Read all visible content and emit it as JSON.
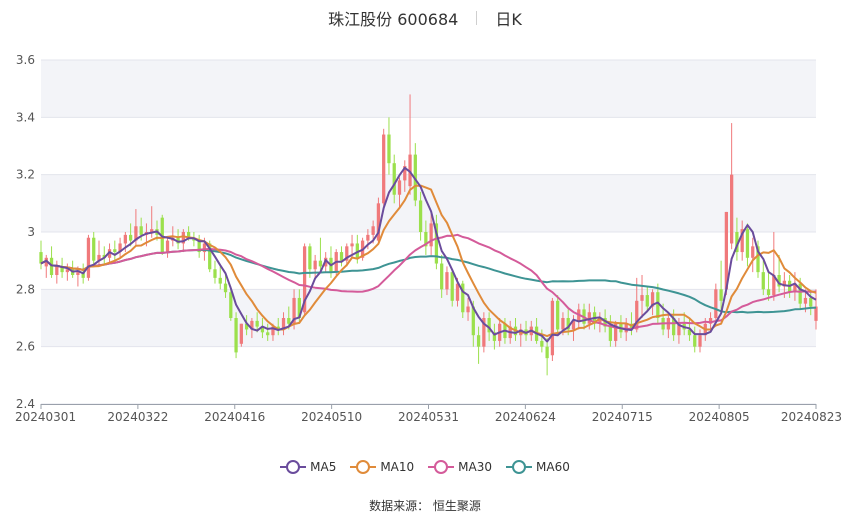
{
  "header": {
    "title": "珠江股份 600684",
    "period": "日K"
  },
  "source": "数据来源： 恒生聚源",
  "chart_data": {
    "type": "candlestick",
    "x_tick_labels": [
      "20240301",
      "20240322",
      "20240416",
      "20240510",
      "20240531",
      "20240624",
      "20240715",
      "20240805",
      "20240823"
    ],
    "y_ticks": [
      "2.4",
      "2.6",
      "2.8",
      "3",
      "3.2",
      "3.4",
      "3.6"
    ],
    "ylim": [
      2.4,
      3.6
    ],
    "colors": {
      "up": "#f0797b",
      "down": "#9be04c",
      "ma5": "#6a4c9c",
      "ma10": "#e08b3a",
      "ma30": "#d45b9a",
      "ma60": "#3e9494",
      "band": "#f3f4f8"
    },
    "legend": [
      {
        "name": "MA5",
        "color": "#6a4c9c"
      },
      {
        "name": "MA10",
        "color": "#e08b3a"
      },
      {
        "name": "MA30",
        "color": "#d45b9a"
      },
      {
        "name": "MA60",
        "color": "#3e9494"
      }
    ],
    "candles": [
      {
        "o": 2.93,
        "h": 2.97,
        "l": 2.87,
        "c": 2.89
      },
      {
        "o": 2.88,
        "h": 2.92,
        "l": 2.84,
        "c": 2.91
      },
      {
        "o": 2.91,
        "h": 2.95,
        "l": 2.84,
        "c": 2.85
      },
      {
        "o": 2.85,
        "h": 2.9,
        "l": 2.82,
        "c": 2.88
      },
      {
        "o": 2.88,
        "h": 2.91,
        "l": 2.84,
        "c": 2.86
      },
      {
        "o": 2.86,
        "h": 2.89,
        "l": 2.83,
        "c": 2.87
      },
      {
        "o": 2.87,
        "h": 2.9,
        "l": 2.84,
        "c": 2.85
      },
      {
        "o": 2.85,
        "h": 2.88,
        "l": 2.81,
        "c": 2.86
      },
      {
        "o": 2.86,
        "h": 2.89,
        "l": 2.82,
        "c": 2.84
      },
      {
        "o": 2.84,
        "h": 2.99,
        "l": 2.83,
        "c": 2.98
      },
      {
        "o": 2.98,
        "h": 3.0,
        "l": 2.88,
        "c": 2.9
      },
      {
        "o": 2.9,
        "h": 2.97,
        "l": 2.88,
        "c": 2.92
      },
      {
        "o": 2.92,
        "h": 2.95,
        "l": 2.89,
        "c": 2.91
      },
      {
        "o": 2.91,
        "h": 2.96,
        "l": 2.89,
        "c": 2.94
      },
      {
        "o": 2.94,
        "h": 2.97,
        "l": 2.9,
        "c": 2.93
      },
      {
        "o": 2.93,
        "h": 2.98,
        "l": 2.91,
        "c": 2.96
      },
      {
        "o": 2.96,
        "h": 3.0,
        "l": 2.93,
        "c": 2.99
      },
      {
        "o": 2.99,
        "h": 3.03,
        "l": 2.95,
        "c": 2.97
      },
      {
        "o": 2.97,
        "h": 3.08,
        "l": 2.95,
        "c": 3.02
      },
      {
        "o": 3.02,
        "h": 3.05,
        "l": 2.97,
        "c": 2.99
      },
      {
        "o": 2.99,
        "h": 3.03,
        "l": 2.95,
        "c": 3.0
      },
      {
        "o": 3.0,
        "h": 3.09,
        "l": 2.98,
        "c": 3.01
      },
      {
        "o": 3.01,
        "h": 3.04,
        "l": 2.97,
        "c": 2.99
      },
      {
        "o": 3.05,
        "h": 3.06,
        "l": 2.92,
        "c": 2.93
      },
      {
        "o": 2.93,
        "h": 2.98,
        "l": 2.91,
        "c": 2.97
      },
      {
        "o": 2.97,
        "h": 3.02,
        "l": 2.95,
        "c": 2.98
      },
      {
        "o": 2.98,
        "h": 3.01,
        "l": 2.94,
        "c": 2.96
      },
      {
        "o": 2.96,
        "h": 3.01,
        "l": 2.93,
        "c": 3.0
      },
      {
        "o": 3.0,
        "h": 3.02,
        "l": 2.97,
        "c": 2.98
      },
      {
        "o": 2.98,
        "h": 3.0,
        "l": 2.95,
        "c": 2.97
      },
      {
        "o": 2.97,
        "h": 2.99,
        "l": 2.91,
        "c": 2.93
      },
      {
        "o": 2.93,
        "h": 2.98,
        "l": 2.9,
        "c": 2.96
      },
      {
        "o": 2.96,
        "h": 2.97,
        "l": 2.86,
        "c": 2.87
      },
      {
        "o": 2.87,
        "h": 2.9,
        "l": 2.82,
        "c": 2.84
      },
      {
        "o": 2.84,
        "h": 2.88,
        "l": 2.8,
        "c": 2.82
      },
      {
        "o": 2.82,
        "h": 2.85,
        "l": 2.77,
        "c": 2.79
      },
      {
        "o": 2.79,
        "h": 2.81,
        "l": 2.69,
        "c": 2.7
      },
      {
        "o": 2.7,
        "h": 2.72,
        "l": 2.56,
        "c": 2.58
      },
      {
        "o": 2.61,
        "h": 2.68,
        "l": 2.6,
        "c": 2.68
      },
      {
        "o": 2.68,
        "h": 2.71,
        "l": 2.64,
        "c": 2.66
      },
      {
        "o": 2.66,
        "h": 2.7,
        "l": 2.63,
        "c": 2.69
      },
      {
        "o": 2.69,
        "h": 2.72,
        "l": 2.65,
        "c": 2.67
      },
      {
        "o": 2.67,
        "h": 2.7,
        "l": 2.63,
        "c": 2.65
      },
      {
        "o": 2.65,
        "h": 2.68,
        "l": 2.62,
        "c": 2.64
      },
      {
        "o": 2.64,
        "h": 2.68,
        "l": 2.62,
        "c": 2.67
      },
      {
        "o": 2.67,
        "h": 2.7,
        "l": 2.64,
        "c": 2.66
      },
      {
        "o": 2.66,
        "h": 2.72,
        "l": 2.64,
        "c": 2.7
      },
      {
        "o": 2.7,
        "h": 2.74,
        "l": 2.66,
        "c": 2.68
      },
      {
        "o": 2.68,
        "h": 2.8,
        "l": 2.66,
        "c": 2.77
      },
      {
        "o": 2.77,
        "h": 2.8,
        "l": 2.68,
        "c": 2.7
      },
      {
        "o": 2.72,
        "h": 2.96,
        "l": 2.71,
        "c": 2.95
      },
      {
        "o": 2.95,
        "h": 2.96,
        "l": 2.84,
        "c": 2.87
      },
      {
        "o": 2.87,
        "h": 2.92,
        "l": 2.84,
        "c": 2.9
      },
      {
        "o": 2.9,
        "h": 2.98,
        "l": 2.86,
        "c": 2.88
      },
      {
        "o": 2.88,
        "h": 2.93,
        "l": 2.86,
        "c": 2.91
      },
      {
        "o": 2.91,
        "h": 2.95,
        "l": 2.84,
        "c": 2.86
      },
      {
        "o": 2.86,
        "h": 2.94,
        "l": 2.85,
        "c": 2.93
      },
      {
        "o": 2.93,
        "h": 2.95,
        "l": 2.88,
        "c": 2.9
      },
      {
        "o": 2.9,
        "h": 2.96,
        "l": 2.88,
        "c": 2.95
      },
      {
        "o": 2.95,
        "h": 2.99,
        "l": 2.91,
        "c": 2.96
      },
      {
        "o": 2.96,
        "h": 2.99,
        "l": 2.89,
        "c": 2.91
      },
      {
        "o": 2.91,
        "h": 2.98,
        "l": 2.9,
        "c": 2.97
      },
      {
        "o": 2.97,
        "h": 3.01,
        "l": 2.94,
        "c": 2.99
      },
      {
        "o": 2.99,
        "h": 3.04,
        "l": 2.96,
        "c": 3.02
      },
      {
        "o": 2.97,
        "h": 3.12,
        "l": 2.96,
        "c": 3.1
      },
      {
        "o": 3.1,
        "h": 3.36,
        "l": 3.08,
        "c": 3.34
      },
      {
        "o": 3.34,
        "h": 3.4,
        "l": 3.2,
        "c": 3.24
      },
      {
        "o": 3.24,
        "h": 3.27,
        "l": 3.1,
        "c": 3.13
      },
      {
        "o": 3.13,
        "h": 3.19,
        "l": 3.08,
        "c": 3.18
      },
      {
        "o": 3.18,
        "h": 3.25,
        "l": 3.14,
        "c": 3.23
      },
      {
        "o": 3.16,
        "h": 3.48,
        "l": 3.13,
        "c": 3.27
      },
      {
        "o": 3.27,
        "h": 3.31,
        "l": 3.09,
        "c": 3.11
      },
      {
        "o": 3.11,
        "h": 3.14,
        "l": 2.97,
        "c": 3.0
      },
      {
        "o": 3.0,
        "h": 3.04,
        "l": 2.92,
        "c": 2.95
      },
      {
        "o": 2.95,
        "h": 3.07,
        "l": 2.92,
        "c": 3.03
      },
      {
        "o": 3.03,
        "h": 3.06,
        "l": 2.87,
        "c": 2.89
      },
      {
        "o": 2.89,
        "h": 2.92,
        "l": 2.77,
        "c": 2.8
      },
      {
        "o": 2.8,
        "h": 2.88,
        "l": 2.78,
        "c": 2.86
      },
      {
        "o": 2.86,
        "h": 2.87,
        "l": 2.74,
        "c": 2.76
      },
      {
        "o": 2.76,
        "h": 2.84,
        "l": 2.74,
        "c": 2.82
      },
      {
        "o": 2.82,
        "h": 2.83,
        "l": 2.7,
        "c": 2.72
      },
      {
        "o": 2.72,
        "h": 2.77,
        "l": 2.69,
        "c": 2.74
      },
      {
        "o": 2.74,
        "h": 2.76,
        "l": 2.6,
        "c": 2.64
      },
      {
        "o": 2.64,
        "h": 2.67,
        "l": 2.54,
        "c": 2.6
      },
      {
        "o": 2.6,
        "h": 2.72,
        "l": 2.58,
        "c": 2.7
      },
      {
        "o": 2.7,
        "h": 2.72,
        "l": 2.62,
        "c": 2.65
      },
      {
        "o": 2.65,
        "h": 2.68,
        "l": 2.59,
        "c": 2.62
      },
      {
        "o": 2.62,
        "h": 2.7,
        "l": 2.6,
        "c": 2.68
      },
      {
        "o": 2.68,
        "h": 2.7,
        "l": 2.61,
        "c": 2.63
      },
      {
        "o": 2.63,
        "h": 2.69,
        "l": 2.61,
        "c": 2.67
      },
      {
        "o": 2.67,
        "h": 2.7,
        "l": 2.62,
        "c": 2.64
      },
      {
        "o": 2.64,
        "h": 2.68,
        "l": 2.6,
        "c": 2.66
      },
      {
        "o": 2.66,
        "h": 2.69,
        "l": 2.62,
        "c": 2.64
      },
      {
        "o": 2.64,
        "h": 2.69,
        "l": 2.62,
        "c": 2.67
      },
      {
        "o": 2.67,
        "h": 2.7,
        "l": 2.61,
        "c": 2.62
      },
      {
        "o": 2.62,
        "h": 2.66,
        "l": 2.58,
        "c": 2.6
      },
      {
        "o": 2.6,
        "h": 2.63,
        "l": 2.5,
        "c": 2.56
      },
      {
        "o": 2.57,
        "h": 2.77,
        "l": 2.55,
        "c": 2.76
      },
      {
        "o": 2.76,
        "h": 2.78,
        "l": 2.64,
        "c": 2.66
      },
      {
        "o": 2.66,
        "h": 2.72,
        "l": 2.64,
        "c": 2.7
      },
      {
        "o": 2.7,
        "h": 2.73,
        "l": 2.64,
        "c": 2.66
      },
      {
        "o": 2.66,
        "h": 2.71,
        "l": 2.62,
        "c": 2.69
      },
      {
        "o": 2.69,
        "h": 2.75,
        "l": 2.66,
        "c": 2.73
      },
      {
        "o": 2.73,
        "h": 2.75,
        "l": 2.66,
        "c": 2.68
      },
      {
        "o": 2.68,
        "h": 2.75,
        "l": 2.66,
        "c": 2.72
      },
      {
        "o": 2.72,
        "h": 2.74,
        "l": 2.66,
        "c": 2.68
      },
      {
        "o": 2.68,
        "h": 2.72,
        "l": 2.65,
        "c": 2.7
      },
      {
        "o": 2.7,
        "h": 2.73,
        "l": 2.65,
        "c": 2.67
      },
      {
        "o": 2.67,
        "h": 2.71,
        "l": 2.6,
        "c": 2.62
      },
      {
        "o": 2.62,
        "h": 2.69,
        "l": 2.6,
        "c": 2.68
      },
      {
        "o": 2.68,
        "h": 2.71,
        "l": 2.63,
        "c": 2.65
      },
      {
        "o": 2.65,
        "h": 2.7,
        "l": 2.62,
        "c": 2.68
      },
      {
        "o": 2.68,
        "h": 2.72,
        "l": 2.64,
        "c": 2.66
      },
      {
        "o": 2.66,
        "h": 2.84,
        "l": 2.65,
        "c": 2.76
      },
      {
        "o": 2.76,
        "h": 2.85,
        "l": 2.7,
        "c": 2.78
      },
      {
        "o": 2.78,
        "h": 2.81,
        "l": 2.72,
        "c": 2.74
      },
      {
        "o": 2.74,
        "h": 2.8,
        "l": 2.71,
        "c": 2.79
      },
      {
        "o": 2.79,
        "h": 2.82,
        "l": 2.68,
        "c": 2.7
      },
      {
        "o": 2.7,
        "h": 2.75,
        "l": 2.64,
        "c": 2.66
      },
      {
        "o": 2.66,
        "h": 2.72,
        "l": 2.63,
        "c": 2.7
      },
      {
        "o": 2.7,
        "h": 2.73,
        "l": 2.62,
        "c": 2.64
      },
      {
        "o": 2.64,
        "h": 2.7,
        "l": 2.61,
        "c": 2.68
      },
      {
        "o": 2.68,
        "h": 2.72,
        "l": 2.64,
        "c": 2.66
      },
      {
        "o": 2.66,
        "h": 2.7,
        "l": 2.62,
        "c": 2.64
      },
      {
        "o": 2.64,
        "h": 2.67,
        "l": 2.58,
        "c": 2.6
      },
      {
        "o": 2.6,
        "h": 2.66,
        "l": 2.58,
        "c": 2.64
      },
      {
        "o": 2.64,
        "h": 2.7,
        "l": 2.62,
        "c": 2.68
      },
      {
        "o": 2.68,
        "h": 2.72,
        "l": 2.65,
        "c": 2.7
      },
      {
        "o": 2.7,
        "h": 2.82,
        "l": 2.68,
        "c": 2.8
      },
      {
        "o": 2.8,
        "h": 2.9,
        "l": 2.72,
        "c": 2.76
      },
      {
        "o": 2.8,
        "h": 3.07,
        "l": 2.78,
        "c": 3.07
      },
      {
        "o": 2.96,
        "h": 3.38,
        "l": 2.94,
        "c": 3.2
      },
      {
        "o": 3.0,
        "h": 3.05,
        "l": 2.9,
        "c": 2.93
      },
      {
        "o": 2.93,
        "h": 3.04,
        "l": 2.9,
        "c": 3.01
      },
      {
        "o": 3.01,
        "h": 3.03,
        "l": 2.88,
        "c": 2.91
      },
      {
        "o": 2.91,
        "h": 2.98,
        "l": 2.86,
        "c": 2.95
      },
      {
        "o": 2.95,
        "h": 2.97,
        "l": 2.84,
        "c": 2.86
      },
      {
        "o": 2.86,
        "h": 2.9,
        "l": 2.78,
        "c": 2.8
      },
      {
        "o": 2.8,
        "h": 2.86,
        "l": 2.76,
        "c": 2.78
      },
      {
        "o": 2.78,
        "h": 3.0,
        "l": 2.76,
        "c": 2.85
      },
      {
        "o": 2.85,
        "h": 2.92,
        "l": 2.79,
        "c": 2.81
      },
      {
        "o": 2.81,
        "h": 2.86,
        "l": 2.77,
        "c": 2.83
      },
      {
        "o": 2.83,
        "h": 2.85,
        "l": 2.77,
        "c": 2.79
      },
      {
        "o": 2.79,
        "h": 2.86,
        "l": 2.76,
        "c": 2.82
      },
      {
        "o": 2.82,
        "h": 2.84,
        "l": 2.73,
        "c": 2.75
      },
      {
        "o": 2.75,
        "h": 2.8,
        "l": 2.72,
        "c": 2.77
      },
      {
        "o": 2.77,
        "h": 2.79,
        "l": 2.71,
        "c": 2.74
      },
      {
        "o": 2.69,
        "h": 2.8,
        "l": 2.66,
        "c": 2.74
      }
    ]
  }
}
